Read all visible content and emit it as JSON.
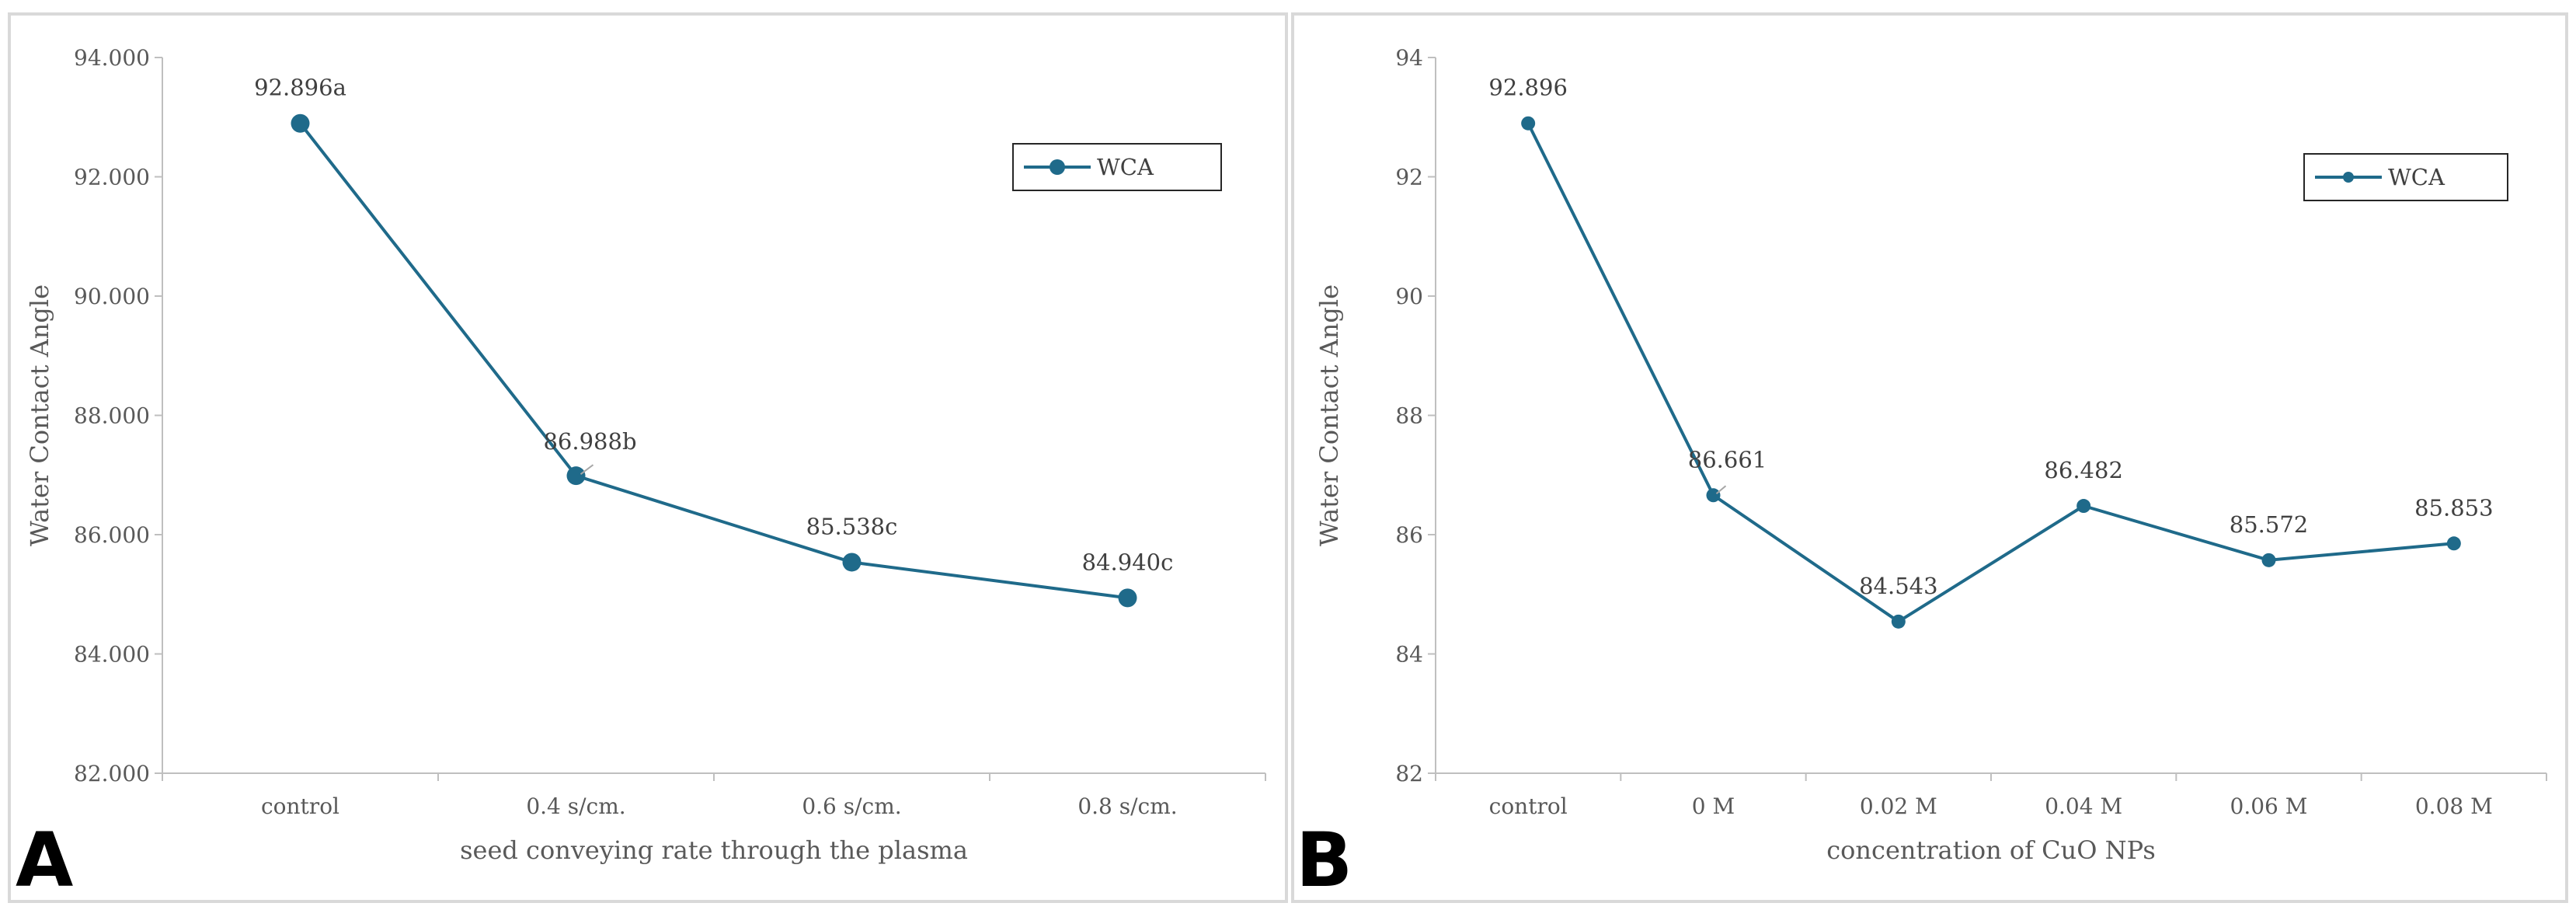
{
  "series_color": "#1f6a8a",
  "chart_data": [
    {
      "type": "line",
      "panel_label": "A",
      "categories": [
        "control",
        "0.4 s/cm.",
        "0.6 s/cm.",
        "0.8 s/cm."
      ],
      "series": [
        {
          "name": "WCA",
          "values": [
            92.896,
            86.988,
            85.538,
            84.94
          ]
        }
      ],
      "data_labels": [
        "92.896a",
        "86.988b",
        "85.538c",
        "84.940c"
      ],
      "y_ticks": [
        "82.000",
        "84.000",
        "86.000",
        "88.000",
        "90.000",
        "92.000",
        "94.000"
      ],
      "ylim": [
        82,
        94
      ],
      "ylabel": "Water Contact Angle",
      "xlabel": "seed conveying rate through the plasma",
      "legend": "WCA",
      "legend_position": "top-right",
      "grid": false
    },
    {
      "type": "line",
      "panel_label": "B",
      "categories": [
        "control",
        "0 M",
        "0.02 M",
        "0.04 M",
        "0.06 M",
        "0.08 M"
      ],
      "series": [
        {
          "name": "WCA",
          "values": [
            92.896,
            86.661,
            84.543,
            86.482,
            85.572,
            85.853
          ]
        }
      ],
      "data_labels": [
        "92.896",
        "86.661",
        "84.543",
        "86.482",
        "85.572",
        "85.853"
      ],
      "y_ticks": [
        "82",
        "84",
        "86",
        "88",
        "90",
        "92",
        "94"
      ],
      "ylim": [
        82,
        94
      ],
      "ylabel": "Water Contact Angle",
      "xlabel": "concentration of CuO NPs",
      "legend": "WCA",
      "legend_position": "top-right",
      "grid": false
    }
  ]
}
